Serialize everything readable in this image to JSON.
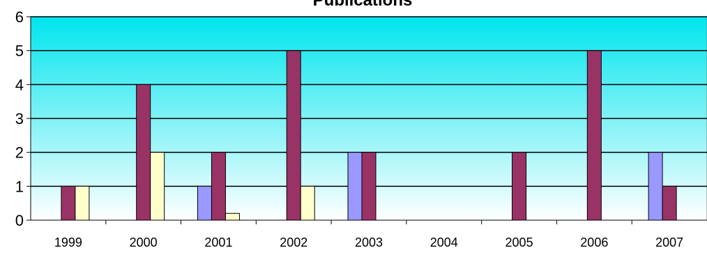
{
  "chart_data": {
    "type": "bar",
    "title": "Publications",
    "xlabel": "",
    "ylabel": "",
    "ylim": [
      0,
      6
    ],
    "yticks": [
      0,
      1,
      2,
      3,
      4,
      5,
      6
    ],
    "grid": true,
    "legend": "none",
    "categories": [
      "1999",
      "2000",
      "2001",
      "2002",
      "2003",
      "2004",
      "2005",
      "2006",
      "2007"
    ],
    "series": [
      {
        "color": "#9999ff",
        "values": [
          0,
          0,
          1,
          0,
          2,
          0,
          0,
          0,
          2
        ]
      },
      {
        "color": "#993366",
        "values": [
          1,
          4,
          2,
          5,
          2,
          0,
          2,
          5,
          1
        ]
      },
      {
        "color": "#ffffcc",
        "values": [
          1,
          2,
          0.2,
          1,
          0,
          0,
          0,
          0,
          0
        ]
      }
    ],
    "background_gradient": [
      "#00e5ee",
      "#ffffff"
    ]
  }
}
